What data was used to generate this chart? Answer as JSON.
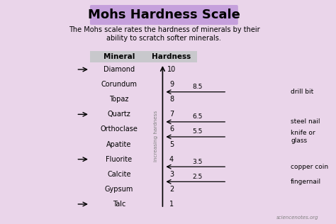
{
  "title": "Mohs Hardness Scale",
  "subtitle": "The Mohs scale rates the hardness of minerals by their\nability to scratch softer minerals.",
  "bg_color": "#ead5ea",
  "title_bg_color": "#c5a0dc",
  "minerals": [
    "Diamond",
    "Corundum",
    "Topaz",
    "Quartz",
    "Orthoclase",
    "Apatite",
    "Fluorite",
    "Calcite",
    "Gypsum",
    "Talc"
  ],
  "hardness_values": [
    10,
    9,
    8,
    7,
    6,
    5,
    4,
    3,
    2,
    1
  ],
  "arrow_minerals": [
    "Diamond",
    "Quartz",
    "Fluorite",
    "Talc"
  ],
  "tool_hardness": [
    "8.5",
    "6.5",
    "5.5",
    "3.5",
    "2.5"
  ],
  "tool_labels": [
    "drill bit",
    "steel nail",
    "knife or\nglass",
    "copper coin",
    "fingernail"
  ],
  "tool_y_positions": [
    8.5,
    6.5,
    5.5,
    3.5,
    2.5
  ],
  "watermark": "sciencenotes.org",
  "axis_label": "increasing hardness",
  "header_label_mineral": "Mineral",
  "header_label_hardness": "Hardness"
}
